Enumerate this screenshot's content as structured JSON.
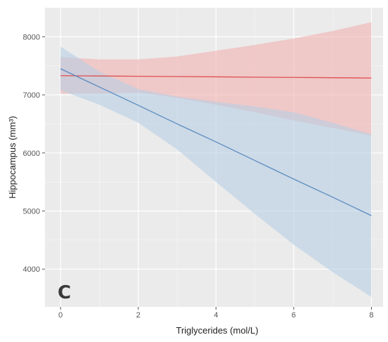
{
  "panel_label": "C",
  "chart_data": {
    "type": "line",
    "xlabel": "Triglycerides (mol/L)",
    "ylabel": "Hippocampus (mm³)",
    "xlim": [
      -0.4,
      8.3
    ],
    "ylim": [
      3350,
      8500
    ],
    "x_ticks": [
      0,
      2,
      4,
      6,
      8
    ],
    "y_ticks": [
      4000,
      5000,
      6000,
      7000,
      8000
    ],
    "x_tick_labels": [
      "0",
      "2",
      "4",
      "6",
      "8"
    ],
    "y_tick_labels": [
      "4000",
      "5000",
      "6000",
      "7000",
      "8000"
    ],
    "grid": true,
    "background": "#ebebeb",
    "series": [
      {
        "color": "#e05050",
        "band_color": "#f2b0b0",
        "x": [
          0,
          1,
          2,
          3,
          4,
          5,
          6,
          7,
          8
        ],
        "fit": [
          7330,
          7325,
          7320,
          7315,
          7310,
          7305,
          7300,
          7295,
          7290
        ],
        "lower": [
          7020,
          7020,
          7040,
          6950,
          6830,
          6700,
          6560,
          6430,
          6300
        ],
        "upper": [
          7650,
          7610,
          7610,
          7660,
          7760,
          7860,
          7970,
          8100,
          8250
        ]
      },
      {
        "color": "#5b8cc0",
        "band_color": "#b8cfe5",
        "x": [
          0,
          1,
          2,
          3,
          4,
          5,
          6,
          7,
          8
        ],
        "fit": [
          7450,
          7135,
          6820,
          6500,
          6190,
          5870,
          5550,
          5240,
          4920
        ],
        "lower": [
          7080,
          6830,
          6520,
          6060,
          5500,
          4950,
          4420,
          3950,
          3520
        ],
        "upper": [
          7830,
          7400,
          7100,
          6970,
          6880,
          6800,
          6700,
          6520,
          6320
        ]
      }
    ]
  }
}
